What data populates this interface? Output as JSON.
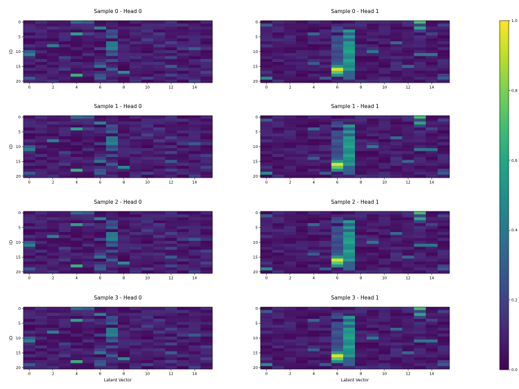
{
  "chart_data": {
    "type": "heatmap",
    "xlabel": "Latent Vector",
    "ylabel": "ID",
    "colormap": "viridis",
    "x_ticks": [
      "0",
      "2",
      "4",
      "6",
      "8",
      "10",
      "12",
      "14"
    ],
    "y_ticks": [
      "0",
      "5",
      "10",
      "15",
      "20"
    ],
    "n_cols": 16,
    "n_rows": 21,
    "value_range": [
      0,
      1
    ],
    "colorbar_ticks": [
      "0.0",
      "0.2",
      "0.4",
      "0.6",
      "0.8",
      "1.0"
    ],
    "panels": [
      {
        "title": "Sample 0 - Head 0",
        "head": 0
      },
      {
        "title": "Sample 0 - Head 1",
        "head": 1
      },
      {
        "title": "Sample 1 - Head 0",
        "head": 0
      },
      {
        "title": "Sample 1 - Head 1",
        "head": 1
      },
      {
        "title": "Sample 2 - Head 0",
        "head": 0
      },
      {
        "title": "Sample 2 - Head 1",
        "head": 1
      },
      {
        "title": "Sample 3 - Head 0",
        "head": 0
      },
      {
        "title": "Sample 3 - Head 1",
        "head": 1
      }
    ],
    "heads": [
      {
        "name": "Head 0",
        "base_value": 0.05,
        "highlights": [
          [
            0,
            4,
            0.35
          ],
          [
            0,
            5,
            0.3
          ],
          [
            0,
            12,
            0.15
          ],
          [
            1,
            13,
            0.15
          ],
          [
            2,
            6,
            0.45
          ],
          [
            2,
            2,
            0.15
          ],
          [
            2,
            9,
            0.12
          ],
          [
            3,
            7,
            0.25
          ],
          [
            3,
            10,
            0.15
          ],
          [
            4,
            4,
            0.6
          ],
          [
            4,
            5,
            0.2
          ],
          [
            4,
            7,
            0.2
          ],
          [
            4,
            11,
            0.18
          ],
          [
            5,
            7,
            0.3
          ],
          [
            5,
            1,
            0.12
          ],
          [
            5,
            14,
            0.12
          ],
          [
            6,
            10,
            0.2
          ],
          [
            6,
            3,
            0.12
          ],
          [
            7,
            7,
            0.4
          ],
          [
            7,
            12,
            0.2
          ],
          [
            7,
            9,
            0.15
          ],
          [
            8,
            2,
            0.45
          ],
          [
            8,
            0,
            0.15
          ],
          [
            8,
            7,
            0.4
          ],
          [
            8,
            11,
            0.18
          ],
          [
            9,
            6,
            0.2
          ],
          [
            9,
            7,
            0.45
          ],
          [
            9,
            13,
            0.18
          ],
          [
            9,
            14,
            0.3
          ],
          [
            9,
            15,
            0.15
          ],
          [
            10,
            0,
            0.3
          ],
          [
            10,
            7,
            0.2
          ],
          [
            10,
            12,
            0.15
          ],
          [
            11,
            0,
            0.45
          ],
          [
            11,
            7,
            0.3
          ],
          [
            11,
            5,
            0.15
          ],
          [
            12,
            3,
            0.2
          ],
          [
            12,
            9,
            0.15
          ],
          [
            12,
            12,
            0.22
          ],
          [
            13,
            1,
            0.15
          ],
          [
            13,
            7,
            0.25
          ],
          [
            13,
            15,
            0.2
          ],
          [
            14,
            6,
            0.2
          ],
          [
            14,
            11,
            0.15
          ],
          [
            15,
            6,
            0.4
          ],
          [
            15,
            12,
            0.3
          ],
          [
            15,
            9,
            0.12
          ],
          [
            16,
            3,
            0.18
          ],
          [
            16,
            7,
            0.3
          ],
          [
            16,
            13,
            0.15
          ],
          [
            17,
            8,
            0.5
          ],
          [
            17,
            15,
            0.2
          ],
          [
            18,
            4,
            0.65
          ],
          [
            18,
            6,
            0.25
          ],
          [
            18,
            12,
            0.2
          ],
          [
            19,
            0,
            0.3
          ],
          [
            19,
            6,
            0.3
          ],
          [
            19,
            10,
            0.2
          ],
          [
            20,
            2,
            0.15
          ],
          [
            20,
            9,
            0.15
          ],
          [
            20,
            14,
            0.2
          ]
        ]
      },
      {
        "name": "Head 1",
        "base_value": 0.05,
        "highlights": [
          [
            0,
            13,
            0.7
          ],
          [
            0,
            12,
            0.15
          ],
          [
            1,
            0,
            0.3
          ],
          [
            1,
            13,
            0.2
          ],
          [
            1,
            15,
            0.2
          ],
          [
            2,
            13,
            0.6
          ],
          [
            2,
            6,
            0.2
          ],
          [
            3,
            6,
            0.25
          ],
          [
            3,
            7,
            0.55
          ],
          [
            3,
            13,
            0.2
          ],
          [
            4,
            4,
            0.35
          ],
          [
            4,
            7,
            0.3
          ],
          [
            4,
            14,
            0.2
          ],
          [
            5,
            6,
            0.25
          ],
          [
            5,
            7,
            0.55
          ],
          [
            5,
            13,
            0.15
          ],
          [
            6,
            6,
            0.25
          ],
          [
            6,
            7,
            0.3
          ],
          [
            6,
            2,
            0.12
          ],
          [
            7,
            7,
            0.55
          ],
          [
            7,
            11,
            0.35
          ],
          [
            7,
            6,
            0.2
          ],
          [
            8,
            6,
            0.3
          ],
          [
            8,
            7,
            0.5
          ],
          [
            8,
            0,
            0.15
          ],
          [
            9,
            6,
            0.25
          ],
          [
            9,
            7,
            0.55
          ],
          [
            9,
            9,
            0.15
          ],
          [
            10,
            7,
            0.6
          ],
          [
            10,
            9,
            0.4
          ],
          [
            10,
            6,
            0.2
          ],
          [
            11,
            6,
            0.25
          ],
          [
            11,
            7,
            0.5
          ],
          [
            11,
            13,
            0.4
          ],
          [
            11,
            14,
            0.4
          ],
          [
            12,
            7,
            0.45
          ],
          [
            12,
            6,
            0.2
          ],
          [
            12,
            3,
            0.12
          ],
          [
            13,
            7,
            0.6
          ],
          [
            13,
            6,
            0.25
          ],
          [
            14,
            4,
            0.3
          ],
          [
            14,
            6,
            0.3
          ],
          [
            14,
            7,
            0.5
          ],
          [
            14,
            11,
            0.15
          ],
          [
            15,
            6,
            0.55
          ],
          [
            15,
            7,
            0.45
          ],
          [
            15,
            12,
            0.35
          ],
          [
            16,
            6,
            0.95
          ],
          [
            16,
            7,
            0.55
          ],
          [
            17,
            6,
            0.75
          ],
          [
            17,
            7,
            0.3
          ],
          [
            17,
            0,
            0.15
          ],
          [
            18,
            6,
            0.5
          ],
          [
            18,
            7,
            0.3
          ],
          [
            18,
            15,
            0.2
          ],
          [
            19,
            0,
            0.5
          ],
          [
            19,
            5,
            0.3
          ],
          [
            19,
            7,
            0.3
          ],
          [
            19,
            15,
            0.3
          ],
          [
            20,
            1,
            0.15
          ],
          [
            20,
            8,
            0.15
          ],
          [
            20,
            10,
            0.15
          ]
        ]
      }
    ]
  }
}
